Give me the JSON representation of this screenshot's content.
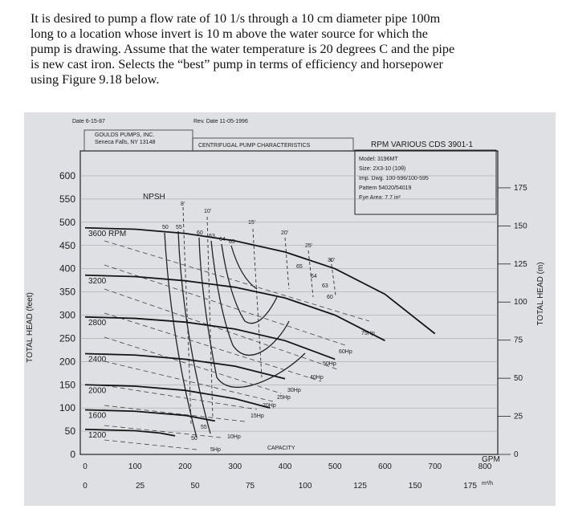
{
  "problem_lines": [
    "It is desired to pump a flow rate of 10 1/s through a 10 cm diameter pipe 100m",
    "long to a location whose invert is 10 m above the water source for which the",
    "pump is drawing. Assume that the water temperature is 20 degrees C and the pipe",
    "is new cast iron. Selects the “best” pump in terms of efficiency and horsepower",
    "using Figure 9.18 below."
  ],
  "chart_data": {
    "type": "line",
    "header": {
      "date": "Date 6-15-87",
      "maker_line1": "GOULDS PUMPS, INC.",
      "maker_line2": "Seneca Falls, NY 13148",
      "rev": "Rev. Date 11-05-1996",
      "title": "CENTRIFUGAL PUMP CHARACTERISTICS",
      "rpm_title": "RPM VARIOUS CDS 3901-1"
    },
    "model_box": [
      "Model: 3196MT",
      "Size: 2X3-10 (10θ)",
      "Imp. Dwg. 100-596/100-595",
      "Pattern 54020/54019",
      "Eye Area: 7.7 in²"
    ],
    "ylabel_left": "TOTAL HEAD (feet)",
    "ylabel_right": "TOTAL HEAD (m)",
    "xlabel_gpm": "GPM",
    "xlabel_m3h": "m³/h",
    "capacity_label": "CAPACITY",
    "npsh_label": "NPSH",
    "x_gpm_ticks": [
      "0",
      "100",
      "200",
      "300",
      "400",
      "500",
      "600",
      "700",
      "800"
    ],
    "x_m3h_ticks": [
      "0",
      "25",
      "50",
      "75",
      "100",
      "125",
      "150",
      "175"
    ],
    "y_ft_ticks": [
      "0",
      "50",
      "100",
      "150",
      "200",
      "250",
      "300",
      "350",
      "400",
      "450",
      "500",
      "550",
      "600"
    ],
    "y_m_ticks": [
      "0",
      "25",
      "50",
      "75",
      "100",
      "125",
      "150",
      "175"
    ],
    "xlim_gpm": [
      0,
      800
    ],
    "ylim_ft": [
      0,
      600
    ],
    "rpm_labels": [
      "3600 RPM",
      "3200",
      "2800",
      "2400",
      "2000",
      "1600",
      "1200"
    ],
    "head_curves": [
      {
        "rpm": 3600,
        "q": [
          0,
          100,
          200,
          300,
          400,
          500,
          600,
          700
        ],
        "h": [
          488,
          485,
          476,
          460,
          436,
          400,
          345,
          260
        ]
      },
      {
        "rpm": 3200,
        "q": [
          0,
          100,
          200,
          300,
          400,
          500,
          600
        ],
        "h": [
          386,
          383,
          374,
          360,
          337,
          300,
          245
        ]
      },
      {
        "rpm": 2800,
        "q": [
          0,
          100,
          200,
          300,
          400,
          500
        ],
        "h": [
          296,
          293,
          285,
          270,
          245,
          205
        ]
      },
      {
        "rpm": 2400,
        "q": [
          0,
          100,
          200,
          300,
          400
        ],
        "h": [
          217,
          214,
          205,
          190,
          163
        ]
      },
      {
        "rpm": 2000,
        "q": [
          0,
          100,
          200,
          300,
          370
        ],
        "h": [
          150,
          147,
          138,
          120,
          100
        ]
      },
      {
        "rpm": 1600,
        "q": [
          0,
          100,
          200,
          260
        ],
        "h": [
          96,
          93,
          84,
          72
        ]
      },
      {
        "rpm": 1200,
        "q": [
          0,
          100,
          150,
          180
        ],
        "h": [
          54,
          51,
          46,
          40
        ]
      }
    ],
    "efficiency_labels": [
      "50",
      "55",
      "60",
      "63",
      "64",
      "65",
      "65",
      "64",
      "63",
      "60",
      "55",
      "50"
    ],
    "npsh_values": [
      "8'",
      "10'",
      "15'",
      "20'",
      "25'",
      "30'"
    ],
    "horsepower_labels": [
      "75Hp",
      "60Hp",
      "50Hp",
      "40Hp",
      "30Hp",
      "25Hp",
      "20Hp",
      "15Hp",
      "10Hp",
      "5Hp"
    ]
  }
}
